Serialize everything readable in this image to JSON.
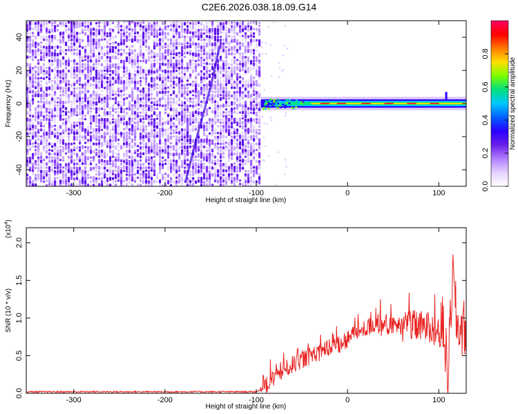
{
  "title": "C2E6.2026.038.18.09.G14",
  "chart_data": [
    {
      "type": "heatmap",
      "xlabel": "Height of straight line (km)",
      "ylabel": "Frequency (Hz)",
      "xlim": [
        -352,
        130
      ],
      "ylim": [
        -50,
        50
      ],
      "xticks": [
        -300,
        -200,
        -100,
        0,
        100
      ],
      "yticks": [
        -40,
        -20,
        0,
        20,
        40
      ],
      "colorbar": {
        "label": "Normalized spectral amplitude",
        "range": [
          0,
          1
        ],
        "ticks": [
          "0.0",
          "0.2",
          "0.4",
          "0.6",
          "0.8"
        ],
        "colors": [
          "#ffffff",
          "#e6d2ff",
          "#b07dff",
          "#6a1fe8",
          "#2a00ff",
          "#0060ff",
          "#00c8ff",
          "#00e080",
          "#7cff00",
          "#ffe000",
          "#ff7a00",
          "#ff0000",
          "#ff0060"
        ]
      },
      "regions": {
        "noise_x": [
          -352,
          -95
        ],
        "signal_band_x": [
          -95,
          130
        ],
        "signal_band_freq": [
          -2,
          2
        ]
      }
    },
    {
      "type": "line",
      "xlabel": "Height of straight line (km)",
      "ylabel": "SNR (10 * v/v)",
      "scale_label": "(x10",
      "scale_exp": "4",
      "xlim": [
        -352,
        130
      ],
      "ylim": [
        0,
        2.2
      ],
      "xticks": [
        -300,
        -200,
        -100,
        0,
        100
      ],
      "yticks": [
        "0.0",
        "0.5",
        "1.0",
        "1.5",
        "2.0"
      ],
      "series": [
        {
          "color": "#e8221f",
          "x": [
            -352,
            -300,
            -200,
            -100,
            -90,
            -80,
            -70,
            -60,
            -50,
            -40,
            -30,
            -20,
            -10,
            0,
            10,
            20,
            30,
            40,
            50,
            60,
            70,
            80,
            90,
            100,
            105,
            110,
            115,
            120,
            130
          ],
          "y": [
            0.02,
            0.02,
            0.02,
            0.02,
            0.08,
            0.22,
            0.3,
            0.38,
            0.45,
            0.5,
            0.55,
            0.6,
            0.65,
            0.72,
            0.8,
            0.86,
            0.88,
            0.88,
            0.89,
            0.9,
            0.89,
            0.88,
            0.87,
            0.85,
            0.9,
            0.2,
            1.6,
            0.88,
            0.86
          ]
        }
      ]
    }
  ]
}
